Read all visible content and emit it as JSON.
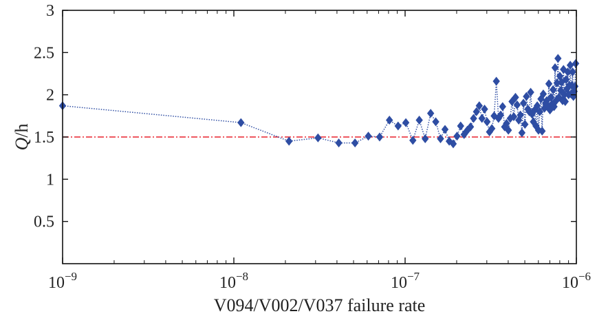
{
  "chart_data": {
    "type": "scatter",
    "xlabel": "V094/V002/V037 failure rate",
    "ylabel_italic": "Q",
    "ylabel_unit": "/h",
    "x_scale": "log",
    "xlim": [
      1e-09,
      1e-06
    ],
    "ylim": [
      0,
      3
    ],
    "xticks": [
      1e-09,
      1e-08,
      1e-07,
      1e-06
    ],
    "xtick_labels": [
      {
        "base": "10",
        "exp": "−9"
      },
      {
        "base": "10",
        "exp": "−8"
      },
      {
        "base": "10",
        "exp": "−7"
      },
      {
        "base": "10",
        "exp": "−6"
      }
    ],
    "yticks": [
      0.5,
      1,
      1.5,
      2,
      2.5,
      3
    ],
    "ytick_labels": [
      "0.5",
      "1",
      "1.5",
      "2",
      "2.5",
      "3"
    ],
    "grid": false,
    "reference_line": {
      "y": 1.5,
      "color": "#e8212b",
      "style": "dash-dot"
    },
    "series": [
      {
        "color": "#2e4da3",
        "marker": "diamond",
        "line_style": "dotted",
        "x": [
          1e-09,
          1.1e-08,
          2.1e-08,
          3.1e-08,
          4.1e-08,
          5.1e-08,
          6.1e-08,
          7.1e-08,
          8.1e-08,
          9.1e-08,
          1.01e-07,
          1.11e-07,
          1.21e-07,
          1.31e-07,
          1.41e-07,
          1.51e-07,
          1.61e-07,
          1.71e-07,
          1.81e-07,
          1.91e-07,
          2.01e-07,
          2.11e-07,
          2.21e-07,
          2.31e-07,
          2.41e-07,
          2.51e-07,
          2.61e-07,
          2.71e-07,
          2.81e-07,
          2.91e-07,
          3.01e-07,
          3.11e-07,
          3.21e-07,
          3.31e-07,
          3.41e-07,
          3.51e-07,
          3.61e-07,
          3.71e-07,
          3.81e-07,
          3.91e-07,
          4.01e-07,
          4.11e-07,
          4.21e-07,
          4.31e-07,
          4.41e-07,
          4.51e-07,
          4.61e-07,
          4.71e-07,
          4.81e-07,
          4.91e-07,
          5.01e-07,
          5.11e-07,
          5.21e-07,
          5.31e-07,
          5.41e-07,
          5.51e-07,
          5.61e-07,
          5.71e-07,
          5.81e-07,
          5.91e-07,
          6.01e-07,
          6.11e-07,
          6.21e-07,
          6.31e-07,
          6.41e-07,
          6.51e-07,
          6.61e-07,
          6.71e-07,
          6.81e-07,
          6.91e-07,
          7.01e-07,
          7.11e-07,
          7.21e-07,
          7.31e-07,
          7.41e-07,
          7.51e-07,
          7.61e-07,
          7.71e-07,
          7.81e-07,
          7.91e-07,
          8.01e-07,
          8.11e-07,
          8.21e-07,
          8.31e-07,
          8.41e-07,
          8.51e-07,
          8.61e-07,
          8.71e-07,
          8.81e-07,
          8.91e-07,
          9.01e-07,
          9.11e-07,
          9.21e-07,
          9.31e-07,
          9.41e-07,
          9.51e-07,
          9.61e-07,
          9.71e-07,
          9.81e-07,
          9.91e-07
        ],
        "y": [
          1.87,
          1.67,
          1.45,
          1.49,
          1.43,
          1.43,
          1.51,
          1.5,
          1.7,
          1.63,
          1.67,
          1.46,
          1.7,
          1.48,
          1.78,
          1.68,
          1.48,
          1.59,
          1.45,
          1.42,
          1.51,
          1.63,
          1.53,
          1.58,
          1.62,
          1.72,
          1.8,
          1.87,
          1.72,
          1.83,
          1.68,
          1.56,
          1.6,
          1.75,
          2.16,
          1.72,
          1.76,
          1.86,
          1.62,
          1.66,
          1.58,
          1.72,
          1.92,
          1.74,
          1.97,
          1.88,
          1.7,
          1.76,
          1.55,
          1.9,
          1.65,
          1.98,
          1.83,
          1.8,
          2.03,
          1.77,
          1.68,
          1.82,
          1.63,
          1.87,
          1.58,
          1.8,
          1.95,
          1.57,
          2.01,
          1.84,
          1.9,
          1.93,
          1.87,
          2.13,
          1.82,
          1.97,
          1.89,
          2.06,
          1.86,
          2.32,
          1.93,
          2.14,
          2.43,
          1.97,
          2.22,
          2.05,
          2.15,
          1.93,
          2.3,
          2.0,
          1.92,
          2.18,
          2.07,
          2.27,
          2.0,
          2.11,
          2.35,
          2.01,
          2.11,
          2.27,
          1.98,
          2.04,
          2.1,
          2.37
        ]
      }
    ]
  }
}
